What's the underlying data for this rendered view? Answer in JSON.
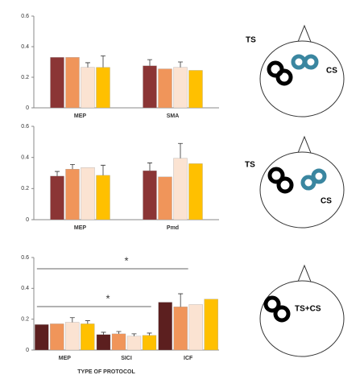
{
  "chart_data": [
    {
      "type": "bar",
      "categories": [
        "MEP",
        "SMA"
      ],
      "ylim": [
        0,
        0.6
      ],
      "yticks": [
        0,
        0.2,
        0.4,
        0.6
      ],
      "series": [
        {
          "color": "#8b3535",
          "values": [
            0.33,
            0.275
          ],
          "errors": [
            null,
            0.04
          ]
        },
        {
          "color": "#f0955a",
          "values": [
            0.33,
            0.255
          ],
          "errors": [
            null,
            null
          ]
        },
        {
          "color": "#fbe3d2",
          "values": [
            0.265,
            0.265
          ],
          "errors": [
            0.03,
            0.035
          ]
        },
        {
          "color": "#ffc000",
          "values": [
            0.265,
            0.245
          ],
          "errors": [
            0.075,
            null
          ]
        }
      ]
    },
    {
      "type": "bar",
      "categories": [
        "MEP",
        "Pmd"
      ],
      "ylim": [
        0,
        0.6
      ],
      "yticks": [
        0,
        0.2,
        0.4,
        0.6
      ],
      "series": [
        {
          "color": "#8b3535",
          "values": [
            0.28,
            0.315
          ],
          "errors": [
            0.03,
            0.05
          ]
        },
        {
          "color": "#f0955a",
          "values": [
            0.325,
            0.275
          ],
          "errors": [
            0.03,
            null
          ]
        },
        {
          "color": "#fbe3d2",
          "values": [
            0.335,
            0.395
          ],
          "errors": [
            null,
            0.095
          ]
        },
        {
          "color": "#ffc000",
          "values": [
            0.285,
            0.36
          ],
          "errors": [
            0.065,
            null
          ]
        }
      ]
    },
    {
      "type": "bar",
      "categories": [
        "MEP",
        "SICI",
        "ICF"
      ],
      "xlabel": "TYPE OF PROTOCOL",
      "ylim": [
        0,
        0.6
      ],
      "yticks": [
        0,
        0.2,
        0.4,
        0.6
      ],
      "annotations": [
        "*",
        "*"
      ],
      "series": [
        {
          "color": "#5c1f1f",
          "values": [
            0.165,
            0.1,
            0.31
          ],
          "errors": [
            null,
            0.015,
            null
          ]
        },
        {
          "color": "#f0955a",
          "values": [
            0.17,
            0.105,
            0.28
          ],
          "errors": [
            null,
            0.015,
            0.085
          ]
        },
        {
          "color": "#fbe3d2",
          "values": [
            0.18,
            0.09,
            0.295
          ],
          "errors": [
            0.03,
            0.015,
            null
          ]
        },
        {
          "color": "#ffc000",
          "values": [
            0.17,
            0.095,
            0.33
          ],
          "errors": [
            0.02,
            0.015,
            null
          ]
        }
      ]
    }
  ],
  "diagrams": [
    {
      "labels": [
        "TS",
        "CS"
      ]
    },
    {
      "labels": [
        "TS",
        "CS"
      ]
    },
    {
      "labels": [
        "TS+CS"
      ]
    }
  ]
}
